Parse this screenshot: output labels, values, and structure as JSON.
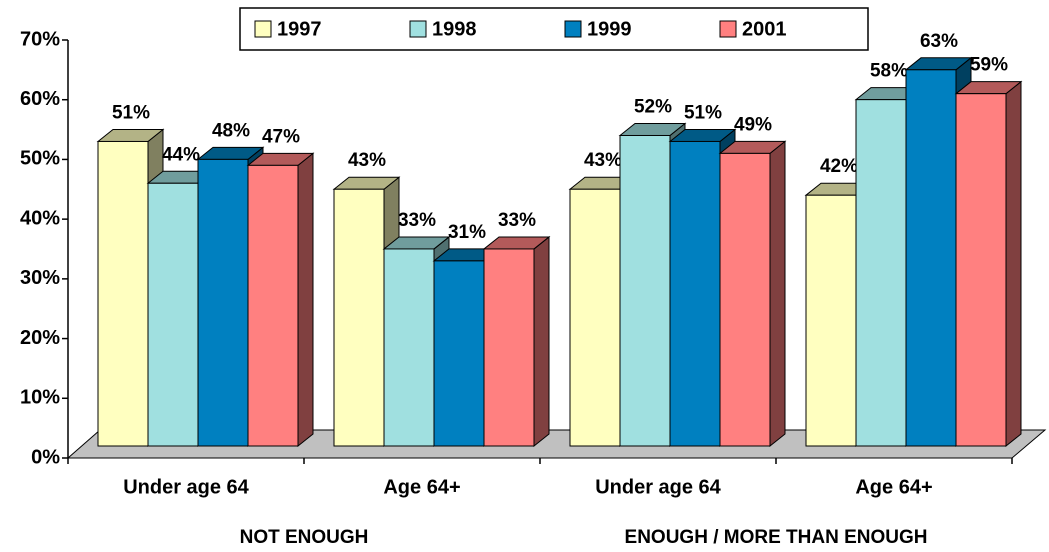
{
  "chart_data": {
    "type": "bar3d",
    "categories": [
      "Under age 64",
      "Age 64+",
      "Under age 64",
      "Age 64+"
    ],
    "groups": [
      "NOT ENOUGH",
      "ENOUGH / MORE THAN ENOUGH"
    ],
    "series": [
      {
        "name": "1997",
        "color": "#ffffc0",
        "values": [
          51,
          43,
          43,
          42
        ],
        "value_labels": [
          "51%",
          "43%",
          "43%",
          "42%"
        ]
      },
      {
        "name": "1998",
        "color": "#a0e0e0",
        "values": [
          44,
          33,
          52,
          58
        ],
        "value_labels": [
          "44%",
          "33%",
          "52%",
          "58%"
        ]
      },
      {
        "name": "1999",
        "color": "#0080c0",
        "values": [
          48,
          31,
          51,
          63
        ],
        "value_labels": [
          "48%",
          "31%",
          "51%",
          "63%"
        ]
      },
      {
        "name": "2001",
        "color": "#ff8080",
        "values": [
          47,
          33,
          49,
          59
        ],
        "value_labels": [
          "47%",
          "33%",
          "49%",
          "59%"
        ]
      }
    ],
    "ylim": [
      0,
      70
    ],
    "yticks": [
      {
        "value": 0,
        "label": "0%"
      },
      {
        "value": 10,
        "label": "10%"
      },
      {
        "value": 20,
        "label": "20%"
      },
      {
        "value": 30,
        "label": "30%"
      },
      {
        "value": 40,
        "label": "40%"
      },
      {
        "value": 50,
        "label": "50%"
      },
      {
        "value": 60,
        "label": "60%"
      },
      {
        "value": 70,
        "label": "70%"
      }
    ],
    "legend": "top"
  }
}
